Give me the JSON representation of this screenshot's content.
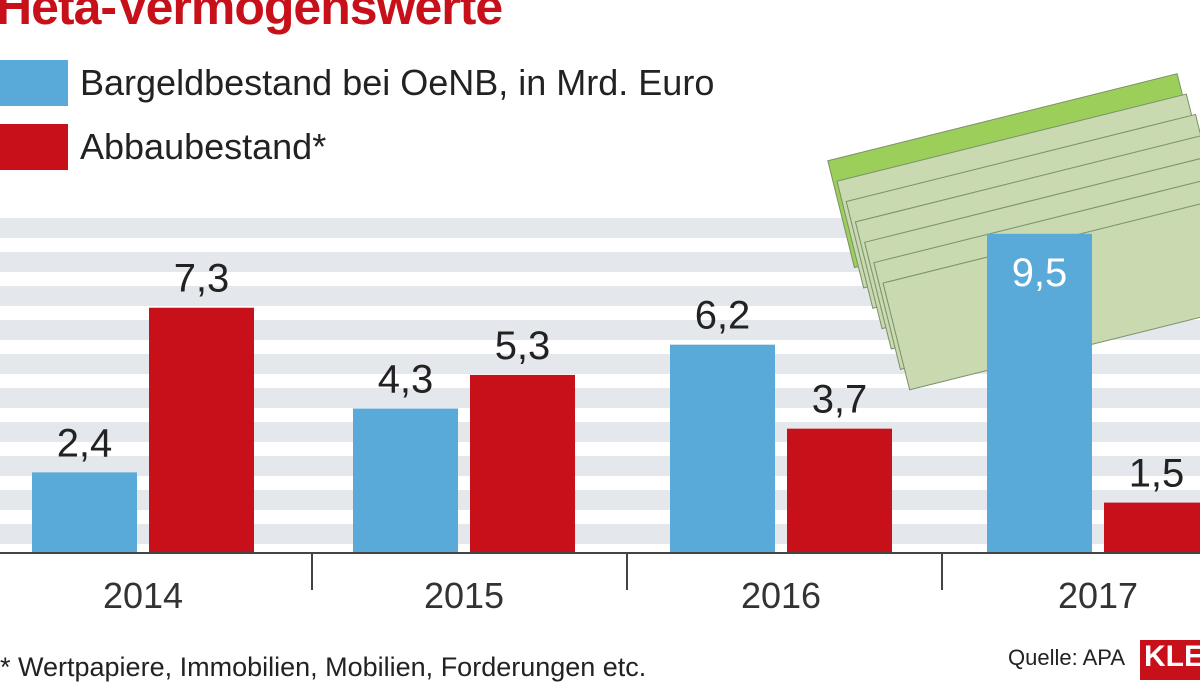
{
  "chart_data": {
    "type": "bar",
    "title": "Heta-Vermögenswerte",
    "categories": [
      "2014",
      "2015",
      "2016",
      "2017"
    ],
    "series": [
      {
        "name": "Bargeldbestand bei OeNB, in Mrd. Euro",
        "color": "#5aaad9",
        "values": [
          2.4,
          4.3,
          6.2,
          9.5
        ],
        "labels": [
          "2,4",
          "4,3",
          "6,2",
          "9,5"
        ]
      },
      {
        "name": "Abbaubestand*",
        "color": "#c8101a",
        "values": [
          7.3,
          5.3,
          3.7,
          1.5
        ],
        "labels": [
          "7,3",
          "5,3",
          "3,7",
          "1,5"
        ]
      }
    ],
    "ylim": [
      0,
      10
    ],
    "legend": "top-left",
    "footnote": "* Wertpapiere, Immobilien, Mobilien, Forderungen etc.",
    "source": "Quelle: APA",
    "logo": "KLEINE ZEITUNG"
  }
}
